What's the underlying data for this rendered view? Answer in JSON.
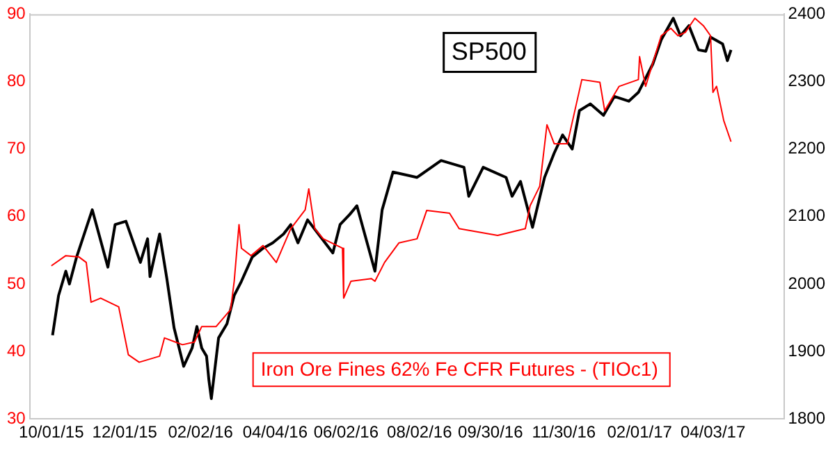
{
  "chart_data": {
    "type": "line",
    "xlim": [
      "2015-09-13",
      "2017-06-01"
    ],
    "xticks": [
      {
        "value": "2015-10-01",
        "label": "10/01/15"
      },
      {
        "value": "2015-12-01",
        "label": "12/01/15"
      },
      {
        "value": "2016-02-02",
        "label": "02/02/16"
      },
      {
        "value": "2016-04-04",
        "label": "04/04/16"
      },
      {
        "value": "2016-06-02",
        "label": "06/02/16"
      },
      {
        "value": "2016-08-02",
        "label": "08/02/16"
      },
      {
        "value": "2016-09-30",
        "label": "09/30/16"
      },
      {
        "value": "2016-11-30",
        "label": "11/30/16"
      },
      {
        "value": "2017-02-01",
        "label": "02/01/17"
      },
      {
        "value": "2017-04-03",
        "label": "04/03/17"
      }
    ],
    "ylim": [
      30,
      90
    ],
    "yticks": [
      30,
      40,
      50,
      60,
      70,
      80,
      90
    ],
    "y2lim": [
      1800,
      2400
    ],
    "y2ticks": [
      1800,
      1900,
      2000,
      2100,
      2200,
      2300,
      2400
    ],
    "grid": false,
    "legend": false,
    "marker": "none",
    "line_style": "solid",
    "series": [
      {
        "name": "Iron Ore Fines 62% Fe CFR Futures - (TIOc1)",
        "color": "#ff0000",
        "axis": "y",
        "x": [
          "2015-10-01",
          "2015-10-13",
          "2015-10-24",
          "2015-10-30",
          "2015-11-03",
          "2015-11-11",
          "2015-11-26",
          "2015-12-04",
          "2015-12-13",
          "2015-12-30",
          "2016-01-03",
          "2016-01-12",
          "2016-01-18",
          "2016-01-28",
          "2016-02-03",
          "2016-02-15",
          "2016-02-27",
          "2016-03-01",
          "2016-03-05",
          "2016-03-07",
          "2016-03-15",
          "2016-03-25",
          "2016-04-05",
          "2016-04-17",
          "2016-04-29",
          "2016-05-02",
          "2016-05-07",
          "2016-05-14",
          "2016-05-30",
          "2016-05-31",
          "2016-06-06",
          "2016-06-23",
          "2016-06-26",
          "2016-07-04",
          "2016-07-16",
          "2016-07-31",
          "2016-08-08",
          "2016-08-27",
          "2016-09-04",
          "2016-10-06",
          "2016-10-29",
          "2016-11-02",
          "2016-11-10",
          "2016-11-16",
          "2016-11-22",
          "2016-12-03",
          "2016-12-15",
          "2016-12-30",
          "2017-01-03",
          "2017-01-15",
          "2017-01-31",
          "2017-02-01",
          "2017-02-06",
          "2017-02-19",
          "2017-02-27",
          "2017-03-05",
          "2017-03-11",
          "2017-03-19",
          "2017-03-26",
          "2017-04-01",
          "2017-04-03",
          "2017-04-06",
          "2017-04-12",
          "2017-04-18"
        ],
        "values": [
          52.7,
          54.2,
          54.0,
          53.2,
          47.3,
          47.9,
          46.6,
          39.5,
          38.4,
          39.3,
          42.0,
          41.4,
          41.0,
          41.4,
          43.7,
          43.7,
          46.2,
          50.4,
          58.8,
          55.3,
          54.2,
          55.7,
          53.2,
          58.2,
          61.0,
          64.1,
          58.2,
          56.7,
          55.3,
          47.9,
          50.4,
          50.8,
          50.4,
          53.2,
          56.1,
          56.7,
          60.9,
          60.5,
          58.2,
          57.2,
          58.2,
          61.6,
          64.5,
          73.6,
          70.8,
          70.8,
          80.3,
          79.9,
          75.7,
          79.3,
          80.3,
          83.7,
          79.3,
          86.8,
          87.9,
          86.8,
          87.3,
          89.4,
          88.3,
          86.8,
          78.4,
          79.3,
          74.2,
          71.1
        ]
      },
      {
        "name": "SP500",
        "color": "#000000",
        "axis": "y2",
        "x": [
          "2015-10-02",
          "2015-10-07",
          "2015-10-13",
          "2015-10-16",
          "2015-10-22",
          "2015-11-04",
          "2015-11-17",
          "2015-11-23",
          "2015-12-02",
          "2015-12-14",
          "2015-12-20",
          "2015-12-22",
          "2015-12-30",
          "2016-01-05",
          "2016-01-11",
          "2016-01-19",
          "2016-01-26",
          "2016-01-30",
          "2016-02-03",
          "2016-02-07",
          "2016-02-09",
          "2016-02-11",
          "2016-02-17",
          "2016-02-24",
          "2016-03-01",
          "2016-03-07",
          "2016-03-16",
          "2016-03-25",
          "2016-04-02",
          "2016-04-11",
          "2016-04-17",
          "2016-04-23",
          "2016-05-01",
          "2016-05-10",
          "2016-05-22",
          "2016-05-28",
          "2016-06-05",
          "2016-06-11",
          "2016-06-26",
          "2016-07-02",
          "2016-07-11",
          "2016-07-31",
          "2016-08-20",
          "2016-09-08",
          "2016-09-12",
          "2016-09-24",
          "2016-10-13",
          "2016-10-18",
          "2016-10-25",
          "2016-11-04",
          "2016-11-14",
          "2016-11-22",
          "2016-11-29",
          "2016-12-07",
          "2016-12-13",
          "2016-12-22",
          "2017-01-02",
          "2017-01-11",
          "2017-01-23",
          "2017-01-31",
          "2017-02-12",
          "2017-02-19",
          "2017-03-01",
          "2017-03-07",
          "2017-03-14",
          "2017-03-22",
          "2017-03-28",
          "2017-04-01",
          "2017-04-11",
          "2017-04-15",
          "2017-04-18"
        ],
        "values": [
          1924,
          1983,
          2019,
          2000,
          2040,
          2110,
          2025,
          2088,
          2093,
          2032,
          2067,
          2011,
          2074,
          2008,
          1935,
          1878,
          1905,
          1937,
          1905,
          1893,
          1857,
          1830,
          1920,
          1941,
          1983,
          2004,
          2040,
          2053,
          2061,
          2074,
          2088,
          2061,
          2095,
          2074,
          2046,
          2088,
          2103,
          2116,
          2019,
          2110,
          2166,
          2158,
          2183,
          2173,
          2130,
          2173,
          2158,
          2130,
          2152,
          2084,
          2158,
          2194,
          2221,
          2200,
          2257,
          2267,
          2250,
          2278,
          2271,
          2284,
          2326,
          2362,
          2394,
          2368,
          2383,
          2347,
          2345,
          2366,
          2356,
          2331,
          2347
        ]
      }
    ]
  }
}
